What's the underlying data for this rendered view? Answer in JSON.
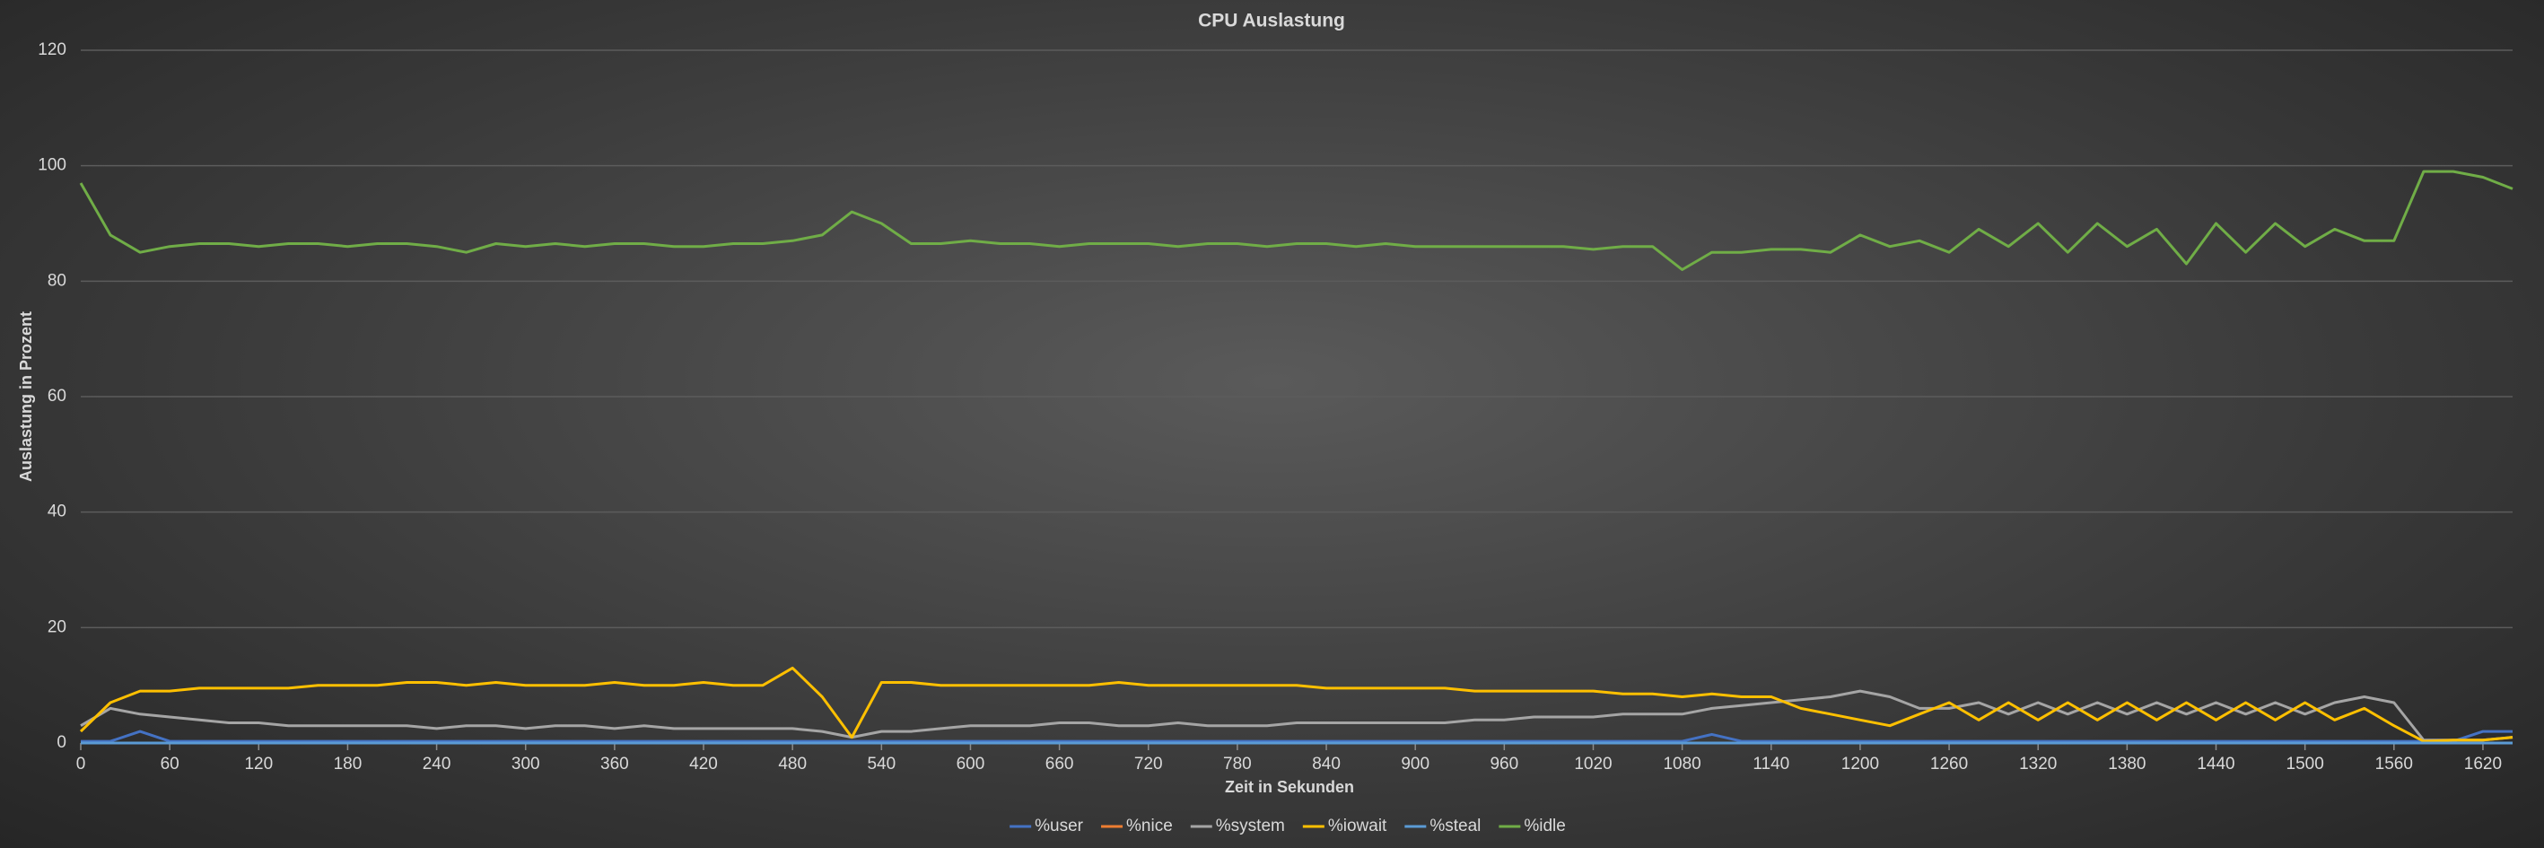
{
  "chart_data": {
    "type": "line",
    "title": "CPU Auslastung",
    "xlabel": "Zeit in Sekunden",
    "ylabel": "Auslastung in Prozent",
    "x": [
      0,
      20,
      40,
      60,
      80,
      100,
      120,
      140,
      160,
      180,
      200,
      220,
      240,
      260,
      280,
      300,
      320,
      340,
      360,
      380,
      400,
      420,
      440,
      460,
      480,
      500,
      520,
      540,
      560,
      580,
      600,
      620,
      640,
      660,
      680,
      700,
      720,
      740,
      760,
      780,
      800,
      820,
      840,
      860,
      880,
      900,
      920,
      940,
      960,
      980,
      1000,
      1020,
      1040,
      1060,
      1080,
      1100,
      1120,
      1140,
      1160,
      1180,
      1200,
      1220,
      1240,
      1260,
      1280,
      1300,
      1320,
      1340,
      1360,
      1380,
      1400,
      1420,
      1440,
      1460,
      1480,
      1500,
      1520,
      1540,
      1560,
      1580,
      1600,
      1620,
      1640
    ],
    "xlim": [
      0,
      1640
    ],
    "xticks": [
      0,
      60,
      120,
      180,
      240,
      300,
      360,
      420,
      480,
      540,
      600,
      660,
      720,
      780,
      840,
      900,
      960,
      1020,
      1080,
      1140,
      1200,
      1260,
      1320,
      1380,
      1440,
      1500,
      1560,
      1620
    ],
    "ylim": [
      0,
      120
    ],
    "yticks": [
      0,
      20,
      40,
      60,
      80,
      100,
      120
    ],
    "grid": true,
    "legend": "bottom",
    "series": [
      {
        "name": "%user",
        "color": "#4472c4",
        "values": [
          0.3,
          0.3,
          2,
          0.3,
          0.3,
          0.3,
          0.3,
          0.3,
          0.3,
          0.3,
          0.3,
          0.3,
          0.3,
          0.3,
          0.3,
          0.3,
          0.3,
          0.3,
          0.3,
          0.3,
          0.3,
          0.3,
          0.3,
          0.3,
          0.3,
          0.3,
          0.3,
          0.3,
          0.3,
          0.3,
          0.3,
          0.3,
          0.3,
          0.3,
          0.3,
          0.3,
          0.3,
          0.3,
          0.3,
          0.3,
          0.3,
          0.3,
          0.3,
          0.3,
          0.3,
          0.3,
          0.3,
          0.3,
          0.3,
          0.3,
          0.3,
          0.3,
          0.3,
          0.3,
          0.3,
          1.5,
          0.3,
          0.3,
          0.3,
          0.3,
          0.3,
          0.3,
          0.3,
          0.3,
          0.3,
          0.3,
          0.3,
          0.3,
          0.3,
          0.3,
          0.3,
          0.3,
          0.3,
          0.3,
          0.3,
          0.3,
          0.3,
          0.3,
          0.3,
          0.3,
          0.3,
          2,
          2
        ]
      },
      {
        "name": "%nice",
        "color": "#ed7d31",
        "values": [
          0,
          0,
          0,
          0,
          0,
          0,
          0,
          0,
          0,
          0,
          0,
          0,
          0,
          0,
          0,
          0,
          0,
          0,
          0,
          0,
          0,
          0,
          0,
          0,
          0,
          0,
          0,
          0,
          0,
          0,
          0,
          0,
          0,
          0,
          0,
          0,
          0,
          0,
          0,
          0,
          0,
          0,
          0,
          0,
          0,
          0,
          0,
          0,
          0,
          0,
          0,
          0,
          0,
          0,
          0,
          0,
          0,
          0,
          0,
          0,
          0,
          0,
          0,
          0,
          0,
          0,
          0,
          0,
          0,
          0,
          0,
          0,
          0,
          0,
          0,
          0,
          0,
          0,
          0,
          0,
          0,
          0,
          0
        ]
      },
      {
        "name": "%system",
        "color": "#a5a5a5",
        "values": [
          3,
          6,
          5,
          4.5,
          4,
          3.5,
          3.5,
          3,
          3,
          3,
          3,
          3,
          2.5,
          3,
          3,
          2.5,
          3,
          3,
          2.5,
          3,
          2.5,
          2.5,
          2.5,
          2.5,
          2.5,
          2,
          1,
          2,
          2,
          2.5,
          3,
          3,
          3,
          3.5,
          3.5,
          3,
          3,
          3.5,
          3,
          3,
          3,
          3.5,
          3.5,
          3.5,
          3.5,
          3.5,
          3.5,
          4,
          4,
          4.5,
          4.5,
          4.5,
          5,
          5,
          5,
          6,
          6.5,
          7,
          7.5,
          8,
          9,
          8,
          6,
          6,
          7,
          5,
          7,
          5,
          7,
          5,
          7,
          5,
          7,
          5,
          7,
          5,
          7,
          8,
          7,
          0.5,
          0.5,
          0.5,
          1
        ]
      },
      {
        "name": "%iowait",
        "color": "#ffc000",
        "values": [
          2,
          7,
          9,
          9,
          9.5,
          9.5,
          9.5,
          9.5,
          10,
          10,
          10,
          10.5,
          10.5,
          10,
          10.5,
          10,
          10,
          10,
          10.5,
          10,
          10,
          10.5,
          10,
          10,
          13,
          8,
          1,
          10.5,
          10.5,
          10,
          10,
          10,
          10,
          10,
          10,
          10.5,
          10,
          10,
          10,
          10,
          10,
          10,
          9.5,
          9.5,
          9.5,
          9.5,
          9.5,
          9,
          9,
          9,
          9,
          9,
          8.5,
          8.5,
          8,
          8.5,
          8,
          8,
          6,
          5,
          4,
          3,
          5,
          7,
          4,
          7,
          4,
          7,
          4,
          7,
          4,
          7,
          4,
          7,
          4,
          7,
          4,
          6,
          3,
          0.3,
          0.5,
          0.5,
          1
        ]
      },
      {
        "name": "%steal",
        "color": "#5b9bd5",
        "values": [
          0,
          0,
          0,
          0,
          0,
          0,
          0,
          0,
          0,
          0,
          0,
          0,
          0,
          0,
          0,
          0,
          0,
          0,
          0,
          0,
          0,
          0,
          0,
          0,
          0,
          0,
          0,
          0,
          0,
          0,
          0,
          0,
          0,
          0,
          0,
          0,
          0,
          0,
          0,
          0,
          0,
          0,
          0,
          0,
          0,
          0,
          0,
          0,
          0,
          0,
          0,
          0,
          0,
          0,
          0,
          0,
          0,
          0,
          0,
          0,
          0,
          0,
          0,
          0,
          0,
          0,
          0,
          0,
          0,
          0,
          0,
          0,
          0,
          0,
          0,
          0,
          0,
          0,
          0,
          0,
          0,
          0,
          0
        ]
      },
      {
        "name": "%idle",
        "color": "#70ad47",
        "values": [
          97,
          88,
          85,
          86,
          86.5,
          86.5,
          86,
          86.5,
          86.5,
          86,
          86.5,
          86.5,
          86,
          85,
          86.5,
          86,
          86.5,
          86,
          86.5,
          86.5,
          86,
          86,
          86.5,
          86.5,
          87,
          88,
          92,
          90,
          86.5,
          86.5,
          87,
          86.5,
          86.5,
          86,
          86.5,
          86.5,
          86.5,
          86,
          86.5,
          86.5,
          86,
          86.5,
          86.5,
          86,
          86.5,
          86,
          86,
          86,
          86,
          86,
          86,
          85.5,
          86,
          86,
          82,
          85,
          85,
          85.5,
          85.5,
          85,
          88,
          86,
          87,
          85,
          89,
          86,
          90,
          85,
          90,
          86,
          89,
          83,
          90,
          85,
          90,
          86,
          89,
          87,
          87,
          99,
          99,
          98,
          96
        ]
      }
    ]
  }
}
